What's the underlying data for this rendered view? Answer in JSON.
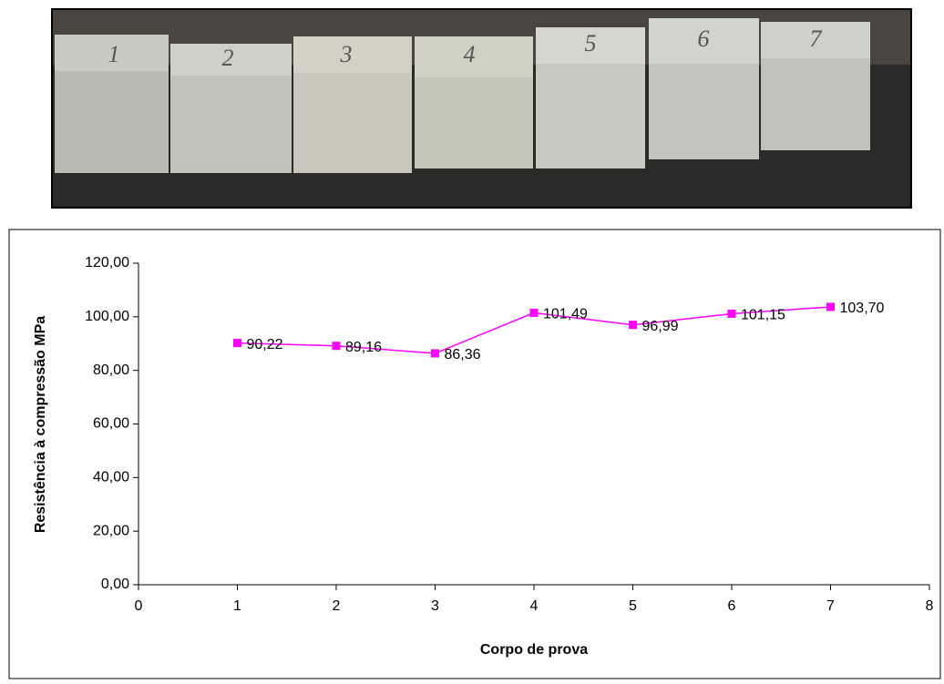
{
  "photo": {
    "labels": [
      "1",
      "2",
      "3",
      "4",
      "5",
      "6",
      "7"
    ]
  },
  "chart_data": {
    "type": "line",
    "x_label": "Corpo de prova",
    "y_label": "Resistência à compressão MPa",
    "x": [
      1,
      2,
      3,
      4,
      5,
      6,
      7
    ],
    "series": [
      {
        "color": "#ff00ff",
        "values": [
          90.22,
          89.16,
          86.36,
          101.49,
          96.99,
          101.15,
          103.7
        ],
        "value_labels": [
          "90,22",
          "89,16",
          "86,36",
          "101,49",
          "96,99",
          "101,15",
          "103,70"
        ]
      }
    ],
    "xlim": [
      0,
      8
    ],
    "xticks": [
      0,
      1,
      2,
      3,
      4,
      5,
      6,
      7,
      8
    ],
    "ylim": [
      0,
      120
    ],
    "yticks": [
      {
        "value": 0,
        "label": "0,00"
      },
      {
        "value": 20,
        "label": "20,00"
      },
      {
        "value": 40,
        "label": "40,00"
      },
      {
        "value": 60,
        "label": "60,00"
      },
      {
        "value": 80,
        "label": "80,00"
      },
      {
        "value": 100,
        "label": "100,00"
      },
      {
        "value": 120,
        "label": "120,00"
      }
    ],
    "marker": "square",
    "grid": false
  }
}
